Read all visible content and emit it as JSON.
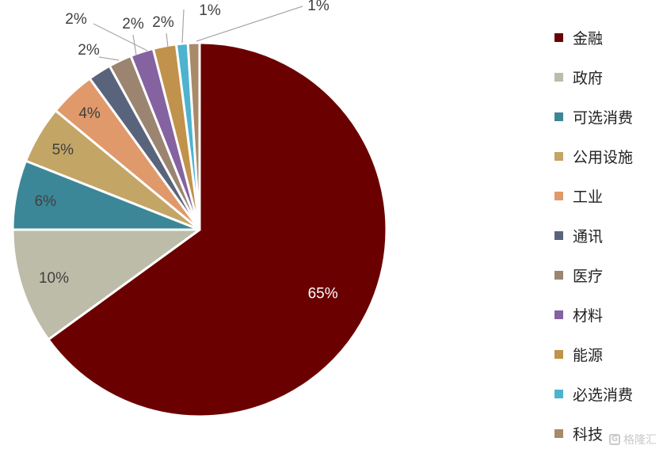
{
  "chart_data": {
    "type": "pie",
    "title": "",
    "legend_position": "right",
    "slices": [
      {
        "name": "金融",
        "value": 65,
        "label": "65%",
        "color": "#6b0000"
      },
      {
        "name": "政府",
        "value": 10,
        "label": "10%",
        "color": "#bcbca8"
      },
      {
        "name": "可选消费",
        "value": 6,
        "label": "6%",
        "color": "#3c8797"
      },
      {
        "name": "公用设施",
        "value": 5,
        "label": "5%",
        "color": "#c3a566"
      },
      {
        "name": "工业",
        "value": 4,
        "label": "4%",
        "color": "#e0996a"
      },
      {
        "name": "通讯",
        "value": 2,
        "label": "2%",
        "color": "#59647c"
      },
      {
        "name": "医疗",
        "value": 2,
        "label": "2%",
        "color": "#9b8570"
      },
      {
        "name": "材料",
        "value": 2,
        "label": "2%",
        "color": "#8463a0"
      },
      {
        "name": "能源",
        "value": 2,
        "label": "2%",
        "color": "#c1924c"
      },
      {
        "name": "必选消费",
        "value": 1,
        "label": "1%",
        "color": "#4db3cf"
      },
      {
        "name": "科技",
        "value": 1,
        "label": "1%",
        "color": "#a88a68"
      }
    ]
  },
  "watermark": {
    "logo": "G",
    "text": "格隆汇"
  }
}
